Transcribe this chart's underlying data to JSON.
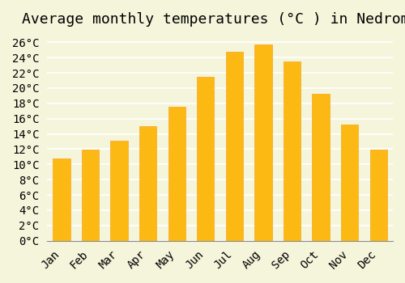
{
  "title": "Average monthly temperatures (°C ) in Nedroma",
  "months": [
    "Jan",
    "Feb",
    "Mar",
    "Apr",
    "May",
    "Jun",
    "Jul",
    "Aug",
    "Sep",
    "Oct",
    "Nov",
    "Dec"
  ],
  "values": [
    10.8,
    11.9,
    13.1,
    15.0,
    17.6,
    21.5,
    24.8,
    25.7,
    23.5,
    19.2,
    15.2,
    11.9
  ],
  "bar_color": "#FDB913",
  "bar_edge_color": "#F5A623",
  "background_color": "#F5F5DC",
  "grid_color": "#FFFFFF",
  "ylim": [
    0,
    27
  ],
  "ytick_step": 2,
  "title_fontsize": 13,
  "tick_fontsize": 10,
  "tick_font": "monospace"
}
